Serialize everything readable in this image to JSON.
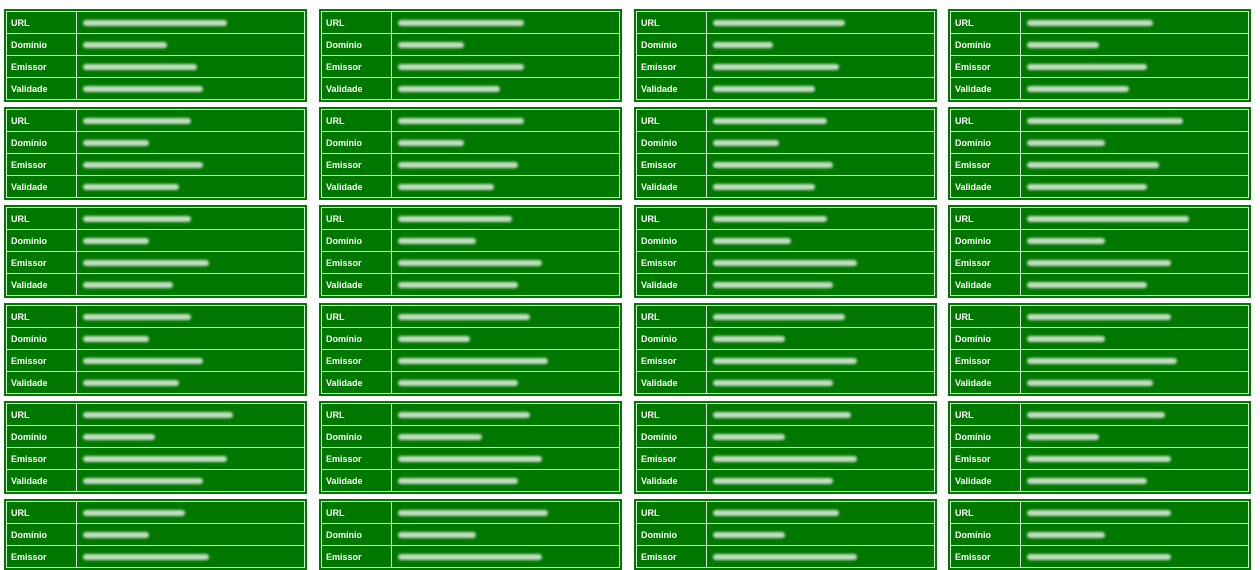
{
  "page_title": "",
  "labels": {
    "url": "URL",
    "domain": "Domínio",
    "issuer": "Emissor",
    "validity": "Validade"
  },
  "colors": {
    "card_background": "#007800",
    "cell_border": "#d6e8d6",
    "label_text": "#ffffff",
    "redacted_value": "#cfe3cf"
  },
  "redaction_note_hidden": "All values are visually blurred/redacted in the screenshot",
  "cards": [
    {
      "rows": [
        "url",
        "domain",
        "issuer",
        "validity"
      ],
      "redacted": [
        0.48,
        0.28,
        0.38,
        0.4
      ]
    },
    {
      "rows": [
        "url",
        "domain",
        "issuer",
        "validity"
      ],
      "redacted": [
        0.42,
        0.22,
        0.42,
        0.34
      ]
    },
    {
      "rows": [
        "url",
        "domain",
        "issuer",
        "validity"
      ],
      "redacted": [
        0.44,
        0.2,
        0.42,
        0.34
      ]
    },
    {
      "rows": [
        "url",
        "domain",
        "issuer",
        "validity"
      ],
      "redacted": [
        0.42,
        0.24,
        0.4,
        0.34
      ]
    },
    {
      "rows": [
        "url",
        "domain",
        "issuer",
        "validity"
      ],
      "redacted": [
        0.36,
        0.22,
        0.4,
        0.32
      ]
    },
    {
      "rows": [
        "url",
        "domain",
        "issuer",
        "validity"
      ],
      "redacted": [
        0.42,
        0.22,
        0.4,
        0.32
      ]
    },
    {
      "rows": [
        "url",
        "domain",
        "issuer",
        "validity"
      ],
      "redacted": [
        0.38,
        0.22,
        0.4,
        0.34
      ]
    },
    {
      "rows": [
        "url",
        "domain",
        "issuer",
        "validity"
      ],
      "redacted": [
        0.52,
        0.26,
        0.44,
        0.4
      ]
    },
    {
      "rows": [
        "url",
        "domain",
        "issuer",
        "validity"
      ],
      "redacted": [
        0.36,
        0.22,
        0.42,
        0.3
      ]
    },
    {
      "rows": [
        "url",
        "domain",
        "issuer",
        "validity"
      ],
      "redacted": [
        0.38,
        0.26,
        0.48,
        0.4
      ]
    },
    {
      "rows": [
        "url",
        "domain",
        "issuer",
        "validity"
      ],
      "redacted": [
        0.38,
        0.26,
        0.48,
        0.4
      ]
    },
    {
      "rows": [
        "url",
        "domain",
        "issuer",
        "validity"
      ],
      "redacted": [
        0.54,
        0.26,
        0.48,
        0.4
      ]
    },
    {
      "rows": [
        "url",
        "domain",
        "issuer",
        "validity"
      ],
      "redacted": [
        0.36,
        0.22,
        0.4,
        0.32
      ]
    },
    {
      "rows": [
        "url",
        "domain",
        "issuer",
        "validity"
      ],
      "redacted": [
        0.44,
        0.24,
        0.5,
        0.4
      ]
    },
    {
      "rows": [
        "url",
        "domain",
        "issuer",
        "validity"
      ],
      "redacted": [
        0.44,
        0.24,
        0.48,
        0.4
      ]
    },
    {
      "rows": [
        "url",
        "domain",
        "issuer",
        "validity"
      ],
      "redacted": [
        0.48,
        0.26,
        0.5,
        0.42
      ]
    },
    {
      "rows": [
        "url",
        "domain",
        "issuer",
        "validity"
      ],
      "redacted": [
        0.5,
        0.24,
        0.48,
        0.4
      ]
    },
    {
      "rows": [
        "url",
        "domain",
        "issuer",
        "validity"
      ],
      "redacted": [
        0.44,
        0.28,
        0.48,
        0.4
      ]
    },
    {
      "rows": [
        "url",
        "domain",
        "issuer",
        "validity"
      ],
      "redacted": [
        0.46,
        0.24,
        0.48,
        0.4
      ]
    },
    {
      "rows": [
        "url",
        "domain",
        "issuer",
        "validity"
      ],
      "redacted": [
        0.46,
        0.24,
        0.48,
        0.4
      ]
    },
    {
      "rows": [
        "url",
        "domain",
        "issuer"
      ],
      "redacted": [
        0.34,
        0.22,
        0.42
      ]
    },
    {
      "rows": [
        "url",
        "domain",
        "issuer"
      ],
      "redacted": [
        0.5,
        0.26,
        0.48
      ]
    },
    {
      "rows": [
        "url",
        "domain",
        "issuer"
      ],
      "redacted": [
        0.42,
        0.24,
        0.48
      ]
    },
    {
      "rows": [
        "url",
        "domain",
        "issuer"
      ],
      "redacted": [
        0.48,
        0.26,
        0.48
      ]
    }
  ]
}
